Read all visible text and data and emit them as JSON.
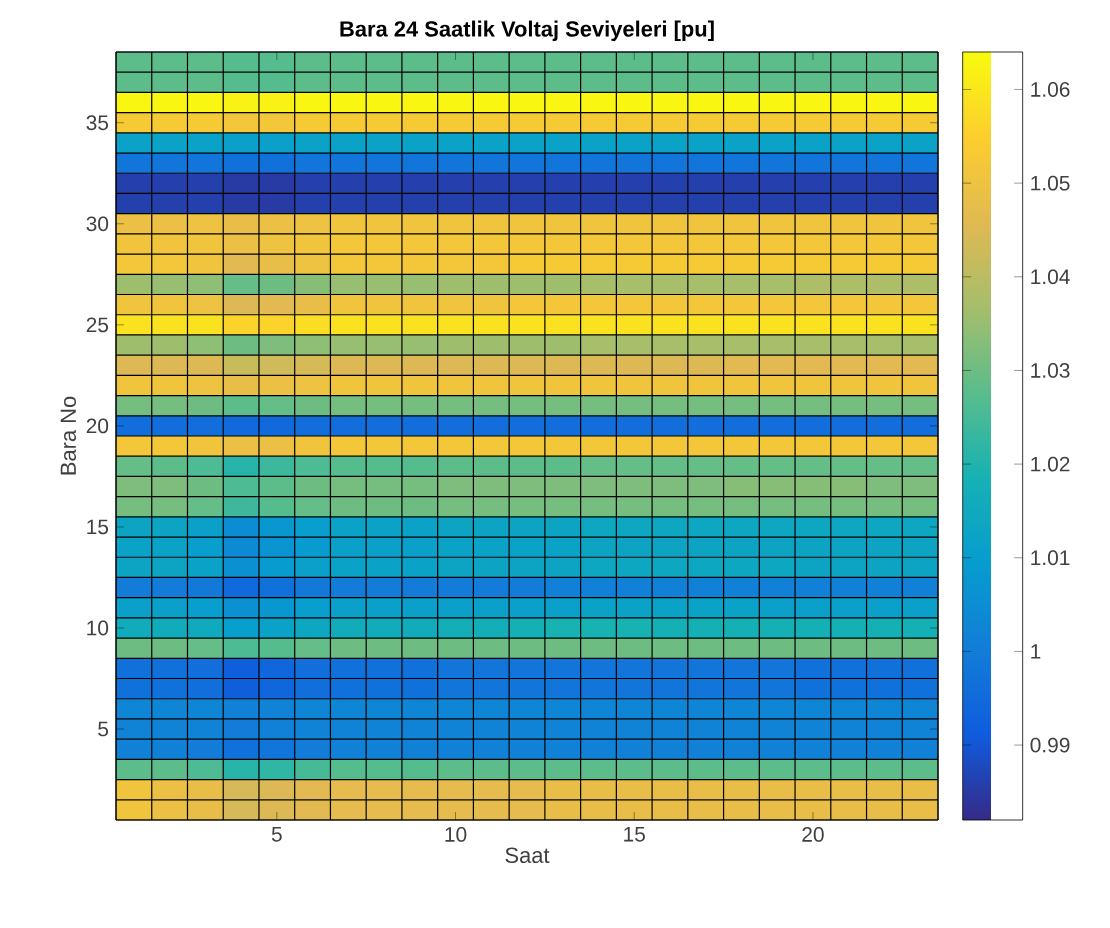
{
  "chart_data": {
    "type": "heatmap",
    "title": "Bara 24 Saatlik Voltaj Seviyeleri [pu]",
    "xlabel": "Saat",
    "ylabel": "Bara No",
    "categories": [
      null,
      null,
      null,
      null,
      "5",
      null,
      null,
      null,
      null,
      "10",
      null,
      null,
      null,
      null,
      "15",
      null,
      null,
      null,
      null,
      "20",
      null,
      null,
      null
    ],
    "y_categories": [
      null,
      null,
      null,
      "35",
      null,
      null,
      null,
      null,
      "30",
      null,
      null,
      null,
      null,
      "25",
      null,
      null,
      null,
      null,
      "20",
      null,
      null,
      null,
      null,
      "15",
      null,
      null,
      null,
      null,
      "10",
      null,
      null,
      null,
      null,
      "5",
      null,
      null,
      null,
      null
    ],
    "grid": true,
    "clim": [
      0.982,
      1.064
    ],
    "cticks": [
      0.99,
      1,
      1.01,
      1.02,
      1.03,
      1.04,
      1.05,
      1.06
    ],
    "cells": [
      [
        1.028,
        1.028,
        1.028,
        1.027,
        1.027,
        1.028,
        1.028,
        1.028,
        1.028,
        1.028,
        1.028,
        1.028,
        1.028,
        1.028,
        1.028,
        1.028,
        1.028,
        1.028,
        1.028,
        1.028,
        1.028,
        1.028,
        1.028
      ],
      [
        1.028,
        1.028,
        1.028,
        1.027,
        1.027,
        1.028,
        1.028,
        1.028,
        1.028,
        1.028,
        1.028,
        1.028,
        1.028,
        1.028,
        1.028,
        1.028,
        1.028,
        1.028,
        1.028,
        1.028,
        1.028,
        1.028,
        1.028
      ],
      [
        1.063,
        1.063,
        1.063,
        1.062,
        1.062,
        1.063,
        1.063,
        1.063,
        1.063,
        1.063,
        1.063,
        1.063,
        1.063,
        1.063,
        1.063,
        1.063,
        1.063,
        1.063,
        1.063,
        1.063,
        1.063,
        1.063,
        1.063
      ],
      [
        1.053,
        1.053,
        1.053,
        1.052,
        1.052,
        1.053,
        1.053,
        1.053,
        1.053,
        1.053,
        1.053,
        1.053,
        1.053,
        1.053,
        1.053,
        1.053,
        1.053,
        1.053,
        1.053,
        1.053,
        1.053,
        1.053,
        1.053
      ],
      [
        1.012,
        1.012,
        1.012,
        1.011,
        1.011,
        1.012,
        1.012,
        1.012,
        1.012,
        1.012,
        1.012,
        1.012,
        1.012,
        1.012,
        1.012,
        1.012,
        1.012,
        1.012,
        1.012,
        1.012,
        1.012,
        1.012,
        1.012
      ],
      [
        0.998,
        0.998,
        0.998,
        0.997,
        0.997,
        0.998,
        0.998,
        0.998,
        0.998,
        0.998,
        0.998,
        0.998,
        0.998,
        0.998,
        0.998,
        0.998,
        0.998,
        0.998,
        0.998,
        0.998,
        0.998,
        0.998,
        0.998
      ],
      [
        0.986,
        0.986,
        0.986,
        0.985,
        0.985,
        0.986,
        0.986,
        0.986,
        0.986,
        0.986,
        0.986,
        0.986,
        0.986,
        0.986,
        0.986,
        0.986,
        0.986,
        0.986,
        0.986,
        0.986,
        0.986,
        0.986,
        0.986
      ],
      [
        0.986,
        0.986,
        0.986,
        0.985,
        0.985,
        0.986,
        0.986,
        0.986,
        0.986,
        0.986,
        0.986,
        0.986,
        0.986,
        0.986,
        0.986,
        0.986,
        0.986,
        0.986,
        0.986,
        0.986,
        0.986,
        0.986,
        0.986
      ],
      [
        1.049,
        1.049,
        1.05,
        1.048,
        1.049,
        1.05,
        1.051,
        1.051,
        1.051,
        1.051,
        1.051,
        1.051,
        1.051,
        1.051,
        1.051,
        1.051,
        1.051,
        1.051,
        1.051,
        1.051,
        1.051,
        1.051,
        1.051
      ],
      [
        1.051,
        1.051,
        1.051,
        1.049,
        1.05,
        1.051,
        1.052,
        1.052,
        1.052,
        1.052,
        1.052,
        1.052,
        1.052,
        1.052,
        1.052,
        1.052,
        1.052,
        1.052,
        1.052,
        1.052,
        1.052,
        1.052,
        1.052
      ],
      [
        1.052,
        1.052,
        1.051,
        1.046,
        1.048,
        1.05,
        1.052,
        1.052,
        1.052,
        1.052,
        1.052,
        1.053,
        1.053,
        1.053,
        1.053,
        1.053,
        1.053,
        1.053,
        1.053,
        1.053,
        1.053,
        1.053,
        1.053
      ],
      [
        1.036,
        1.035,
        1.034,
        1.029,
        1.03,
        1.033,
        1.035,
        1.035,
        1.035,
        1.036,
        1.036,
        1.036,
        1.036,
        1.037,
        1.037,
        1.037,
        1.037,
        1.037,
        1.037,
        1.038,
        1.038,
        1.038,
        1.038
      ],
      [
        1.051,
        1.051,
        1.05,
        1.045,
        1.046,
        1.048,
        1.051,
        1.051,
        1.051,
        1.051,
        1.051,
        1.052,
        1.052,
        1.052,
        1.052,
        1.052,
        1.052,
        1.052,
        1.052,
        1.052,
        1.052,
        1.052,
        1.052
      ],
      [
        1.059,
        1.059,
        1.059,
        1.056,
        1.056,
        1.058,
        1.059,
        1.059,
        1.059,
        1.059,
        1.059,
        1.059,
        1.059,
        1.059,
        1.059,
        1.059,
        1.059,
        1.059,
        1.059,
        1.059,
        1.059,
        1.059,
        1.059
      ],
      [
        1.036,
        1.036,
        1.034,
        1.03,
        1.032,
        1.034,
        1.035,
        1.035,
        1.035,
        1.036,
        1.036,
        1.036,
        1.036,
        1.037,
        1.037,
        1.037,
        1.037,
        1.037,
        1.037,
        1.037,
        1.037,
        1.037,
        1.037
      ],
      [
        1.045,
        1.045,
        1.045,
        1.042,
        1.043,
        1.044,
        1.045,
        1.045,
        1.045,
        1.045,
        1.045,
        1.045,
        1.045,
        1.045,
        1.045,
        1.045,
        1.045,
        1.046,
        1.046,
        1.046,
        1.046,
        1.046,
        1.046
      ],
      [
        1.051,
        1.051,
        1.05,
        1.048,
        1.049,
        1.05,
        1.051,
        1.051,
        1.051,
        1.051,
        1.051,
        1.051,
        1.051,
        1.051,
        1.051,
        1.051,
        1.051,
        1.051,
        1.051,
        1.051,
        1.051,
        1.051,
        1.051
      ],
      [
        1.031,
        1.031,
        1.03,
        1.028,
        1.029,
        1.03,
        1.031,
        1.031,
        1.031,
        1.031,
        1.031,
        1.031,
        1.031,
        1.031,
        1.031,
        1.031,
        1.031,
        1.031,
        1.031,
        1.031,
        1.031,
        1.031,
        1.031
      ],
      [
        0.996,
        0.996,
        0.996,
        0.995,
        0.995,
        0.996,
        0.996,
        0.996,
        0.996,
        0.996,
        0.996,
        0.996,
        0.996,
        0.996,
        0.996,
        0.996,
        0.996,
        0.996,
        0.996,
        0.996,
        0.996,
        0.996,
        0.996
      ],
      [
        1.052,
        1.052,
        1.051,
        1.049,
        1.049,
        1.051,
        1.052,
        1.052,
        1.052,
        1.052,
        1.052,
        1.052,
        1.052,
        1.052,
        1.052,
        1.052,
        1.052,
        1.052,
        1.052,
        1.052,
        1.052,
        1.052,
        1.052
      ],
      [
        1.029,
        1.028,
        1.026,
        1.021,
        1.024,
        1.026,
        1.027,
        1.027,
        1.027,
        1.028,
        1.028,
        1.028,
        1.028,
        1.029,
        1.029,
        1.029,
        1.029,
        1.029,
        1.029,
        1.029,
        1.029,
        1.029,
        1.029
      ],
      [
        1.032,
        1.032,
        1.03,
        1.026,
        1.028,
        1.03,
        1.031,
        1.031,
        1.031,
        1.032,
        1.032,
        1.032,
        1.032,
        1.032,
        1.032,
        1.032,
        1.032,
        1.033,
        1.033,
        1.033,
        1.033,
        1.032,
        1.032
      ],
      [
        1.031,
        1.031,
        1.029,
        1.024,
        1.027,
        1.029,
        1.03,
        1.03,
        1.03,
        1.031,
        1.031,
        1.031,
        1.031,
        1.031,
        1.031,
        1.031,
        1.031,
        1.031,
        1.031,
        1.031,
        1.031,
        1.031,
        1.031
      ],
      [
        1.013,
        1.013,
        1.011,
        1.005,
        1.008,
        1.01,
        1.012,
        1.012,
        1.012,
        1.013,
        1.013,
        1.013,
        1.013,
        1.014,
        1.014,
        1.014,
        1.014,
        1.014,
        1.014,
        1.014,
        1.014,
        1.014,
        1.014
      ],
      [
        1.012,
        1.012,
        1.01,
        1.004,
        1.007,
        1.009,
        1.011,
        1.011,
        1.011,
        1.012,
        1.012,
        1.012,
        1.012,
        1.013,
        1.013,
        1.013,
        1.013,
        1.013,
        1.013,
        1.013,
        1.013,
        1.013,
        1.013
      ],
      [
        1.013,
        1.013,
        1.012,
        1.006,
        1.009,
        1.011,
        1.012,
        1.012,
        1.012,
        1.013,
        1.013,
        1.013,
        1.013,
        1.014,
        1.014,
        1.014,
        1.014,
        1.014,
        1.014,
        1.013,
        1.013,
        1.013,
        1.013
      ],
      [
        1.0,
        1.0,
        0.999,
        0.995,
        0.997,
        0.999,
        1.0,
        1.0,
        1.0,
        1.0,
        1.0,
        1.0,
        1.001,
        1.001,
        1.001,
        1.001,
        1.001,
        1.001,
        1.001,
        1.001,
        1.001,
        1.001,
        1.001
      ],
      [
        1.011,
        1.011,
        1.01,
        1.006,
        1.008,
        1.01,
        1.011,
        1.011,
        1.011,
        1.011,
        1.011,
        1.011,
        1.011,
        1.012,
        1.012,
        1.012,
        1.012,
        1.012,
        1.011,
        1.011,
        1.011,
        1.011,
        1.011
      ],
      [
        1.016,
        1.016,
        1.015,
        1.01,
        1.012,
        1.014,
        1.016,
        1.016,
        1.016,
        1.017,
        1.017,
        1.018,
        1.019,
        1.019,
        1.019,
        1.018,
        1.018,
        1.018,
        1.018,
        1.018,
        1.018,
        1.018,
        1.018
      ],
      [
        1.03,
        1.03,
        1.029,
        1.026,
        1.027,
        1.029,
        1.03,
        1.03,
        1.03,
        1.03,
        1.03,
        1.03,
        1.03,
        1.03,
        1.03,
        1.03,
        1.03,
        1.03,
        1.03,
        1.03,
        1.03,
        1.03,
        1.03
      ],
      [
        0.997,
        0.997,
        0.996,
        0.992,
        0.994,
        0.996,
        0.997,
        0.997,
        0.997,
        0.998,
        0.998,
        0.998,
        0.998,
        0.998,
        0.998,
        0.998,
        0.998,
        0.998,
        0.998,
        0.997,
        0.997,
        0.997,
        0.997
      ],
      [
        0.997,
        0.997,
        0.996,
        0.992,
        0.994,
        0.996,
        0.997,
        0.997,
        0.997,
        0.998,
        0.998,
        0.998,
        0.998,
        0.998,
        0.998,
        0.998,
        0.998,
        0.998,
        0.998,
        0.997,
        0.997,
        0.997,
        0.997
      ],
      [
        1.003,
        1.003,
        1.003,
        1.001,
        1.002,
        1.003,
        1.003,
        1.003,
        1.003,
        1.003,
        1.003,
        1.003,
        1.003,
        1.003,
        1.003,
        1.003,
        1.003,
        1.003,
        1.003,
        1.003,
        1.003,
        1.003,
        1.003
      ],
      [
        1.002,
        1.002,
        1.002,
        1.0,
        1.001,
        1.002,
        1.002,
        1.002,
        1.002,
        1.002,
        1.002,
        1.002,
        1.002,
        1.002,
        1.002,
        1.002,
        1.002,
        1.002,
        1.002,
        1.002,
        1.002,
        1.002,
        1.002
      ],
      [
        1.001,
        1.001,
        1.0,
        0.997,
        0.998,
        1.0,
        1.001,
        1.001,
        1.001,
        1.001,
        1.001,
        1.001,
        1.001,
        1.001,
        1.001,
        1.001,
        1.001,
        1.001,
        1.001,
        1.001,
        1.001,
        1.001,
        1.001
      ],
      [
        1.028,
        1.028,
        1.026,
        1.021,
        1.022,
        1.025,
        1.027,
        1.027,
        1.027,
        1.028,
        1.028,
        1.028,
        1.028,
        1.028,
        1.028,
        1.028,
        1.028,
        1.028,
        1.028,
        1.028,
        1.028,
        1.028,
        1.028
      ],
      [
        1.051,
        1.049,
        1.048,
        1.044,
        1.045,
        1.046,
        1.047,
        1.047,
        1.047,
        1.047,
        1.047,
        1.047,
        1.048,
        1.048,
        1.048,
        1.048,
        1.048,
        1.048,
        1.048,
        1.048,
        1.048,
        1.048,
        1.048
      ],
      [
        1.051,
        1.049,
        1.048,
        1.044,
        1.045,
        1.046,
        1.047,
        1.047,
        1.047,
        1.047,
        1.047,
        1.047,
        1.048,
        1.048,
        1.048,
        1.048,
        1.048,
        1.048,
        1.048,
        1.048,
        1.048,
        1.048,
        1.048
      ]
    ]
  }
}
